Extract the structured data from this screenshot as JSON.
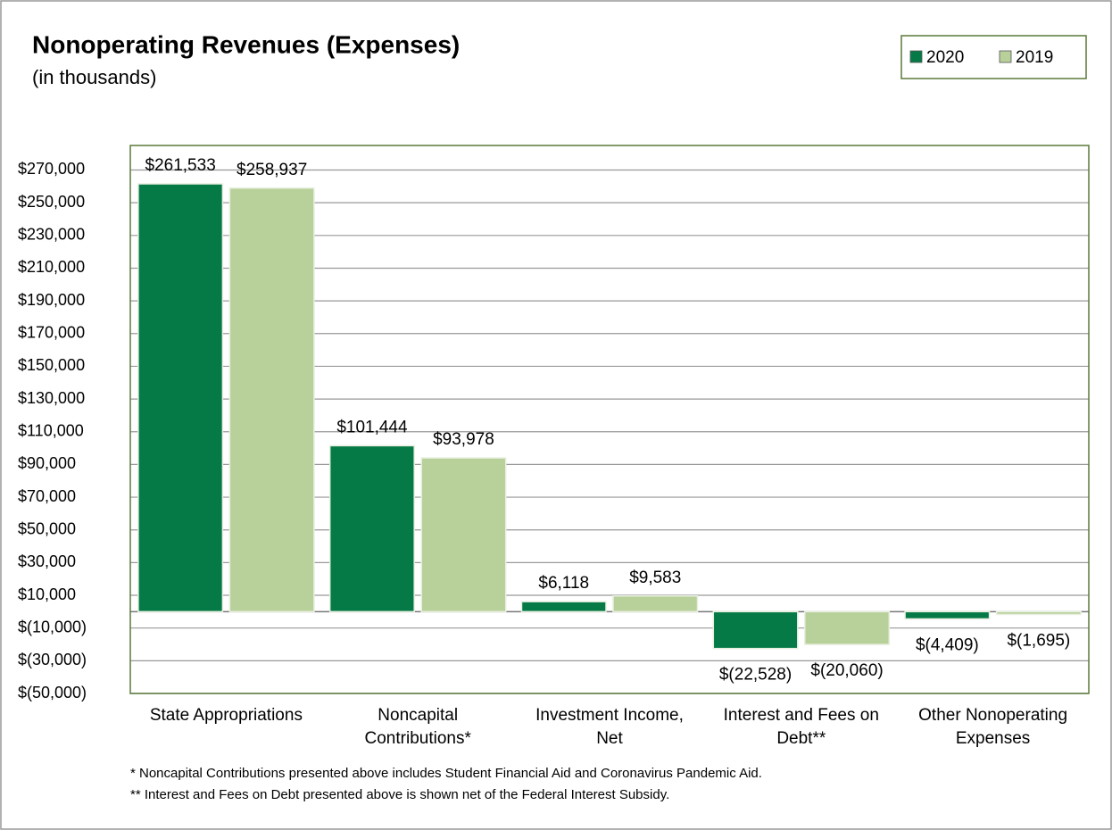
{
  "chart_data": {
    "type": "bar",
    "title": "Nonoperating Revenues (Expenses)",
    "subtitle": "(in thousands)",
    "categories": [
      "State Appropriations",
      "Noncapital Contributions*",
      "Investment Income, Net",
      "Interest and Fees on Debt**",
      "Other Nonoperating Expenses"
    ],
    "series": [
      {
        "name": "2020",
        "color": "#067a46",
        "values": [
          261533,
          101444,
          6118,
          -22528,
          -4409
        ],
        "value_labels": [
          "$261,533",
          "$101,444",
          "$6,118",
          "$(22,528)",
          "$(4,409)"
        ]
      },
      {
        "name": "2019",
        "color": "#b8d09a",
        "values": [
          258937,
          93978,
          9583,
          -20060,
          -1695
        ],
        "value_labels": [
          "$258,937",
          "$93,978",
          "$9,583",
          "$(20,060)",
          "$(1,695)"
        ]
      }
    ],
    "ylim": [
      -50000,
      285000
    ],
    "yticks": [
      {
        "value": -50000,
        "label": "$(50,000)"
      },
      {
        "value": -30000,
        "label": "$(30,000)"
      },
      {
        "value": -10000,
        "label": "$(10,000)"
      },
      {
        "value": 10000,
        "label": "$10,000"
      },
      {
        "value": 30000,
        "label": "$30,000"
      },
      {
        "value": 50000,
        "label": "$50,000"
      },
      {
        "value": 70000,
        "label": "$70,000"
      },
      {
        "value": 90000,
        "label": "$90,000"
      },
      {
        "value": 110000,
        "label": "$110,000"
      },
      {
        "value": 130000,
        "label": "$130,000"
      },
      {
        "value": 150000,
        "label": "$150,000"
      },
      {
        "value": 170000,
        "label": "$170,000"
      },
      {
        "value": 190000,
        "label": "$190,000"
      },
      {
        "value": 210000,
        "label": "$210,000"
      },
      {
        "value": 230000,
        "label": "$230,000"
      },
      {
        "value": 250000,
        "label": "$250,000"
      },
      {
        "value": 270000,
        "label": "$270,000"
      }
    ],
    "grid": true,
    "legend": "top-right",
    "footnotes": [
      "* Noncapital Contributions presented above includes Student Financial Aid and Coronavirus Pandemic Aid.",
      "** Interest and Fees on Debt presented above is shown net of the Federal Interest Subsidy."
    ]
  }
}
